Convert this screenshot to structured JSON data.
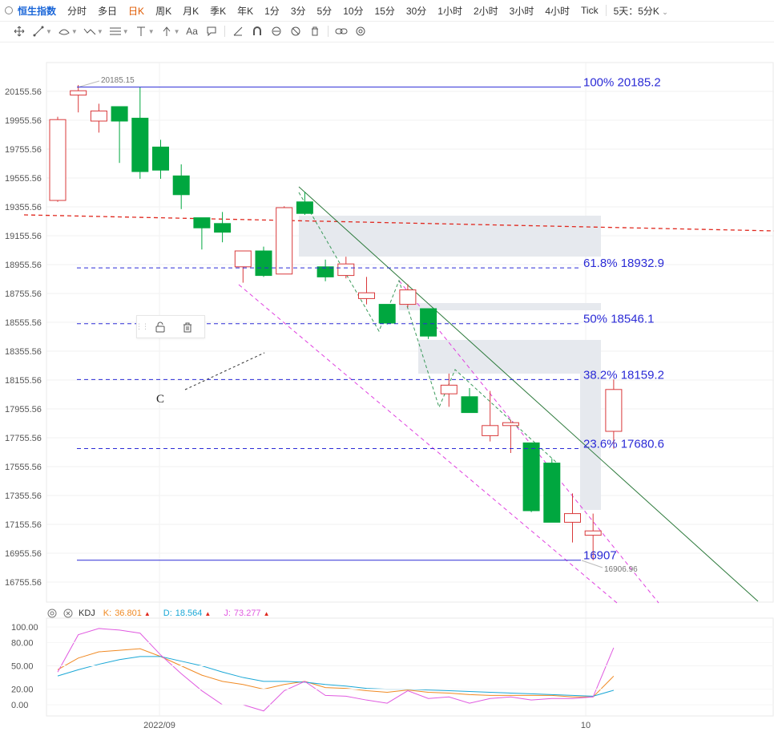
{
  "topbar": {
    "title": "恒生指数",
    "items": [
      "分时",
      "多日",
      "日K",
      "周K",
      "月K",
      "季K",
      "年K",
      "1分",
      "3分",
      "5分",
      "10分",
      "15分",
      "30分",
      "1小时",
      "2小时",
      "3小时",
      "4小时",
      "Tick"
    ],
    "active": "日K",
    "multi": "5天：5分K"
  },
  "toolbar": {
    "tools": [
      "crosshair-icon",
      "line-tools-icon",
      "shape-tools-icon",
      "pattern-tools-icon",
      "fib-tools-icon",
      "text-tools-icon",
      "arrow-tools-icon",
      "font-icon",
      "note-icon",
      "ruler-icon",
      "magnet-icon",
      "lock-icon",
      "hide-icon",
      "delete-icon",
      "link-icon",
      "settings-icon"
    ]
  },
  "floating_tools": {
    "tools": [
      "unlock-icon",
      "trash-icon"
    ]
  },
  "colors": {
    "up": "#d9383a",
    "down": "#00a73f",
    "fib": "#2b2bd6",
    "trend": "#e0281e",
    "channel": "#e040e0",
    "green_line": "#2d7a3c",
    "k": "#f08a24",
    "d": "#1aa7d6",
    "j": "#e05ae0",
    "zone": "#e6e9ee"
  },
  "chart_data": [
    {
      "type": "candlestick",
      "y_tick_labels": [
        "20155.56",
        "19955.56",
        "19755.56",
        "19555.56",
        "19355.56",
        "19155.56",
        "18955.56",
        "18755.56",
        "18555.56",
        "18355.56",
        "18155.56",
        "17955.56",
        "17755.56",
        "17555.56",
        "17355.56",
        "17155.56",
        "16955.56",
        "16755.56"
      ],
      "ylim": [
        16700,
        20300
      ],
      "x_tick_labels": [
        "2022/09",
        "10"
      ],
      "high_label": "20185.15",
      "low_label": "16906.96",
      "candles": [
        {
          "o": 19400,
          "h": 19980,
          "l": 19390,
          "c": 19960
        },
        {
          "o": 20130,
          "h": 20200,
          "l": 20010,
          "c": 20160
        },
        {
          "o": 19950,
          "h": 20070,
          "l": 19870,
          "c": 20020
        },
        {
          "o": 20050,
          "h": 20050,
          "l": 19660,
          "c": 19950
        },
        {
          "o": 19970,
          "h": 20185,
          "l": 19550,
          "c": 19600
        },
        {
          "o": 19770,
          "h": 19820,
          "l": 19550,
          "c": 19610
        },
        {
          "o": 19570,
          "h": 19650,
          "l": 19340,
          "c": 19440
        },
        {
          "o": 19280,
          "h": 19280,
          "l": 19060,
          "c": 19210
        },
        {
          "o": 19240,
          "h": 19320,
          "l": 19110,
          "c": 19180
        },
        {
          "o": 18940,
          "h": 19030,
          "l": 18830,
          "c": 19050
        },
        {
          "o": 19050,
          "h": 19080,
          "l": 18870,
          "c": 18880
        },
        {
          "o": 18890,
          "h": 19360,
          "l": 18890,
          "c": 19350
        },
        {
          "o": 19390,
          "h": 19460,
          "l": 19300,
          "c": 19310
        },
        {
          "o": 18940,
          "h": 18990,
          "l": 18840,
          "c": 18870
        },
        {
          "o": 18880,
          "h": 19010,
          "l": 18860,
          "c": 18960
        },
        {
          "o": 18720,
          "h": 18870,
          "l": 18680,
          "c": 18760
        },
        {
          "o": 18680,
          "h": 18680,
          "l": 18540,
          "c": 18550
        },
        {
          "o": 18680,
          "h": 18820,
          "l": 18660,
          "c": 18780
        },
        {
          "o": 18650,
          "h": 18650,
          "l": 18440,
          "c": 18460
        },
        {
          "o": 18060,
          "h": 18200,
          "l": 17970,
          "c": 18120
        },
        {
          "o": 18040,
          "h": 18100,
          "l": 17930,
          "c": 17930
        },
        {
          "o": 17770,
          "h": 18080,
          "l": 17730,
          "c": 17840
        },
        {
          "o": 17840,
          "h": 17880,
          "l": 17650,
          "c": 17860
        },
        {
          "o": 17720,
          "h": 17720,
          "l": 17240,
          "c": 17250
        },
        {
          "o": 17580,
          "h": 17610,
          "l": 17170,
          "c": 17170
        },
        {
          "o": 17170,
          "h": 17370,
          "l": 17030,
          "c": 17230
        },
        {
          "o": 17080,
          "h": 17230,
          "l": 16907,
          "c": 17110
        },
        {
          "o": 17800,
          "h": 18160,
          "l": 17680,
          "c": 18090
        }
      ],
      "fibonacci": [
        {
          "label": "100% 20185.2",
          "value": 20185.2
        },
        {
          "label": "61.8% 18932.9",
          "value": 18932.9
        },
        {
          "label": "50% 18546.1",
          "value": 18546.1
        },
        {
          "label": "38.2% 18159.2",
          "value": 18159.2
        },
        {
          "label": "23.6% 17680.6",
          "value": 17680.6
        },
        {
          "label": "16907",
          "value": 16907
        }
      ],
      "annotations": [
        {
          "text": "C"
        }
      ]
    },
    {
      "type": "line",
      "indicator": "KDJ",
      "legend": {
        "name": "KDJ",
        "k_label": "K:",
        "k_value": "36.801",
        "d_label": "D:",
        "d_value": "18.564",
        "j_label": "J:",
        "j_value": "73.277"
      },
      "y_tick_labels": [
        "100.00",
        "80.00",
        "50.00",
        "20.00",
        "0.00"
      ],
      "ylim": [
        -10,
        110
      ],
      "series": [
        {
          "name": "K",
          "values": [
            45,
            60,
            68,
            70,
            72,
            62,
            50,
            38,
            30,
            26,
            20,
            26,
            30,
            22,
            21,
            18,
            16,
            19,
            16,
            15,
            13,
            12,
            12,
            12,
            12,
            10,
            10,
            36.801
          ]
        },
        {
          "name": "D",
          "values": [
            37,
            45,
            52,
            58,
            62,
            62,
            56,
            50,
            42,
            35,
            30,
            30,
            29,
            26,
            24,
            21,
            20,
            20,
            19,
            18,
            17,
            16,
            15,
            14,
            13,
            12,
            11,
            18.564
          ]
        },
        {
          "name": "J",
          "values": [
            42,
            90,
            98,
            96,
            92,
            64,
            40,
            18,
            0,
            0,
            -8,
            18,
            30,
            12,
            11,
            6,
            2,
            18,
            8,
            10,
            2,
            8,
            10,
            6,
            8,
            8,
            10,
            73.277
          ]
        }
      ]
    }
  ]
}
